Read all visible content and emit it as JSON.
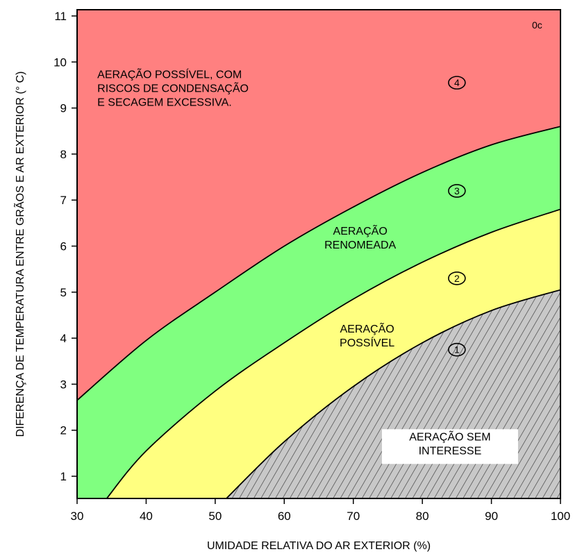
{
  "chart_data": {
    "type": "area",
    "title": "",
    "xlabel": "UMIDADE RELATIVA DO AR EXTERIOR (%)",
    "ylabel": "DIFERENÇA DE TEMPERATURA ENTRE GRÃOS E AR EXTERIOR (° C)",
    "xlim": [
      30,
      100
    ],
    "ylim": [
      0.5,
      11.2
    ],
    "x_ticks": [
      30,
      40,
      50,
      60,
      70,
      80,
      90,
      100
    ],
    "y_ticks": [
      1,
      2,
      3,
      4,
      5,
      6,
      7,
      8,
      9,
      10,
      11
    ],
    "grid": false,
    "corner_unit_label": "0c",
    "boundaries": [
      {
        "between": [
          "1",
          "2"
        ],
        "points": [
          [
            51.5,
            0.5
          ],
          [
            60,
            1.75
          ],
          [
            70,
            2.95
          ],
          [
            80,
            3.9
          ],
          [
            90,
            4.6
          ],
          [
            100,
            5.05
          ]
        ]
      },
      {
        "between": [
          "2",
          "3"
        ],
        "points": [
          [
            34.2,
            0.5
          ],
          [
            40,
            1.55
          ],
          [
            50,
            2.85
          ],
          [
            60,
            3.9
          ],
          [
            70,
            4.85
          ],
          [
            80,
            5.65
          ],
          [
            90,
            6.3
          ],
          [
            100,
            6.8
          ]
        ]
      },
      {
        "between": [
          "3",
          "4"
        ],
        "points": [
          [
            30,
            2.65
          ],
          [
            40,
            3.95
          ],
          [
            50,
            5.0
          ],
          [
            60,
            6.0
          ],
          [
            70,
            6.85
          ],
          [
            80,
            7.6
          ],
          [
            90,
            8.2
          ],
          [
            100,
            8.6
          ]
        ]
      }
    ],
    "regions": [
      {
        "zone": "1",
        "number_label": "1",
        "color": "#c8c8c8",
        "pattern": "hatched",
        "label_lines": [
          "AERAÇÃO SEM",
          "INTERESSE"
        ],
        "label_x": 84,
        "label_y": 1.78,
        "number_x": 85,
        "number_y": 3.75
      },
      {
        "zone": "2",
        "number_label": "2",
        "color": "#ffff80",
        "label_lines": [
          "AERAÇÃO",
          "POSSÍVEL"
        ],
        "label_x": 72,
        "label_y": 4.12,
        "number_x": 85,
        "number_y": 5.3
      },
      {
        "zone": "3",
        "number_label": "3",
        "color": "#80ff80",
        "label_lines": [
          "AERAÇÃO",
          "RENOMEADA"
        ],
        "label_x": 71,
        "label_y": 6.25,
        "number_x": 85,
        "number_y": 7.2
      },
      {
        "zone": "4",
        "number_label": "4",
        "color": "#ff8080",
        "label_lines": [
          "AERAÇÃO POSSÍVEL, COM",
          "RISCOS DE CONDENSAÇÃO",
          "E SECAGEM EXCESSIVA."
        ],
        "label_x": 44.5,
        "label_y": 9.65,
        "number_x": 85,
        "number_y": 9.55
      }
    ]
  }
}
